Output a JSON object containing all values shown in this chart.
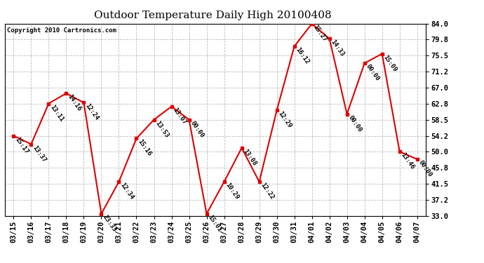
{
  "title": "Outdoor Temperature Daily High 20100408",
  "copyright": "Copyright 2010 Cartronics.com",
  "dates": [
    "03/15",
    "03/16",
    "03/17",
    "03/18",
    "03/19",
    "03/20",
    "03/21",
    "03/22",
    "03/23",
    "03/24",
    "03/25",
    "03/26",
    "03/27",
    "03/28",
    "03/29",
    "03/30",
    "03/31",
    "04/01",
    "04/02",
    "04/03",
    "04/04",
    "04/05",
    "04/06",
    "04/07"
  ],
  "temps": [
    54.2,
    52.0,
    62.8,
    65.5,
    63.0,
    33.5,
    42.0,
    53.5,
    58.5,
    62.0,
    58.5,
    33.5,
    42.0,
    51.0,
    42.0,
    61.0,
    78.0,
    84.0,
    80.0,
    60.0,
    73.5,
    76.0,
    50.0,
    48.0
  ],
  "labels": [
    "15:17",
    "13:37",
    "13:11",
    "14:16",
    "12:24",
    "23:33",
    "12:34",
    "15:16",
    "13:53",
    "13:07",
    "00:00",
    "15:01",
    "10:29",
    "13:08",
    "12:22",
    "12:29",
    "16:12",
    "15:27",
    "14:33",
    "00:00",
    "00:00",
    "15:09",
    "13:46",
    "00:00"
  ],
  "line_color": "#dd0000",
  "marker_color": "#dd0000",
  "bg_color": "#ffffff",
  "grid_color": "#aaaaaa",
  "ylim": [
    33.0,
    84.0
  ],
  "yticks": [
    33.0,
    37.2,
    41.5,
    45.8,
    50.0,
    54.2,
    58.5,
    62.8,
    67.0,
    71.2,
    75.5,
    79.8,
    84.0
  ],
  "title_fontsize": 11,
  "label_fontsize": 6.5,
  "copyright_fontsize": 6.5,
  "tick_fontsize": 7.5
}
